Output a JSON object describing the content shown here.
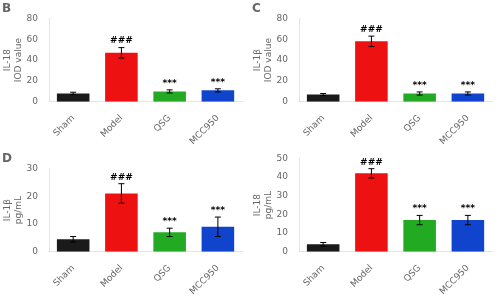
{
  "chart_data": [
    {
      "type": "bar",
      "title": "B",
      "y_label": "IL-18\nIOD value",
      "categories": [
        "Sham",
        "Model",
        "QSG",
        "MCC950"
      ],
      "values": [
        8,
        47,
        10,
        11
      ],
      "errors": [
        1.2,
        5,
        1.5,
        1.5
      ],
      "colors": [
        "#1a1a1a",
        "#ee1111",
        "#22aa22",
        "#1144cc"
      ],
      "ylim": [
        0,
        80
      ],
      "yticks": [
        0,
        20,
        40,
        60,
        80
      ],
      "grid": false,
      "annotations": [
        {
          "category": "Model",
          "text": "###"
        },
        {
          "category": "QSG",
          "text": "***"
        },
        {
          "category": "MCC950",
          "text": "***"
        }
      ]
    },
    {
      "type": "bar",
      "title": "C",
      "y_label": "IL-1β\nIOD value",
      "categories": [
        "Sham",
        "Model",
        "QSG",
        "MCC950"
      ],
      "values": [
        7,
        58,
        8,
        8
      ],
      "errors": [
        1.0,
        5,
        1.5,
        1.5
      ],
      "colors": [
        "#1a1a1a",
        "#ee1111",
        "#22aa22",
        "#1144cc"
      ],
      "ylim": [
        0,
        80
      ],
      "yticks": [
        0,
        20,
        40,
        60,
        80
      ],
      "grid": false,
      "annotations": [
        {
          "category": "Model",
          "text": "###"
        },
        {
          "category": "QSG",
          "text": "***"
        },
        {
          "category": "MCC950",
          "text": "***"
        }
      ]
    },
    {
      "type": "bar",
      "title": "D",
      "y_label": "IL-1β\npg/mL",
      "categories": [
        "Sham",
        "Model",
        "QSG",
        "MCC950"
      ],
      "values": [
        4.5,
        21,
        7,
        9
      ],
      "errors": [
        1.0,
        3.5,
        1.5,
        3.5
      ],
      "colors": [
        "#1a1a1a",
        "#ee1111",
        "#22aa22",
        "#1144cc"
      ],
      "ylim": [
        0,
        30
      ],
      "yticks": [
        0,
        10,
        20,
        30
      ],
      "grid": false,
      "annotations": [
        {
          "category": "Model",
          "text": "###"
        },
        {
          "category": "QSG",
          "text": "***"
        },
        {
          "category": "MCC950",
          "text": "***"
        }
      ]
    },
    {
      "type": "bar",
      "y_label": "IL-18\npg/mL",
      "categories": [
        "Sham",
        "Model",
        "QSG",
        "MCC950"
      ],
      "values": [
        4,
        42,
        17,
        17
      ],
      "errors": [
        1.0,
        2.5,
        2.5,
        2.5
      ],
      "colors": [
        "#1a1a1a",
        "#ee1111",
        "#22aa22",
        "#1144cc"
      ],
      "ylim": [
        0,
        50
      ],
      "yticks": [
        0,
        10,
        20,
        30,
        40,
        50
      ],
      "grid": false,
      "annotations": [
        {
          "category": "Model",
          "text": "###"
        },
        {
          "category": "QSG",
          "text": "***"
        },
        {
          "category": "MCC950",
          "text": "***"
        }
      ]
    }
  ]
}
